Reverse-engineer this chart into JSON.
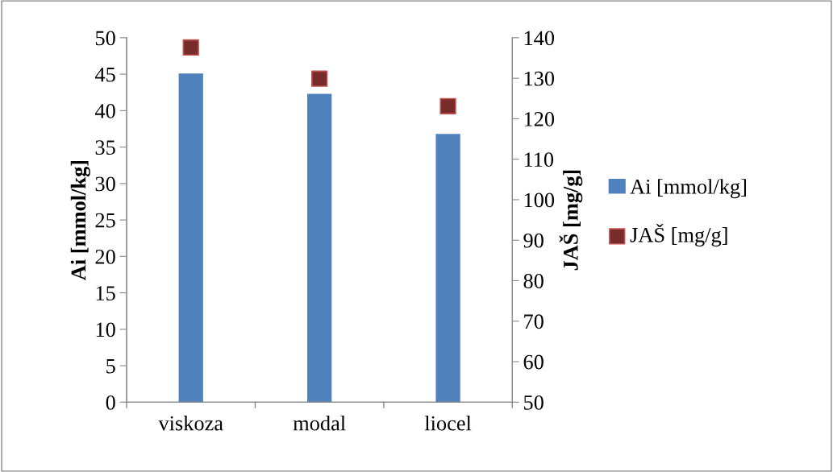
{
  "chart_data": {
    "type": "bar",
    "categories": [
      "viskoza",
      "modal",
      "liocel"
    ],
    "ylabel": "Ai [mmol/kg]",
    "y2label": "JAŠ [mg/g]",
    "series": [
      {
        "name": "Ai [mmol/kg]",
        "color": "#4f81bd",
        "values": [
          45.1,
          42.3,
          36.8
        ]
      },
      {
        "name": "JAŠ [mg/g]",
        "type": "scatter",
        "axis": "y2",
        "color": "#772c2a",
        "marker": "square",
        "values": [
          137.6,
          129.9,
          123.1
        ]
      }
    ],
    "ylim": [
      0,
      50
    ],
    "yticks": [
      0,
      5,
      10,
      15,
      20,
      25,
      30,
      35,
      40,
      45,
      50
    ],
    "y2lim": [
      50,
      140
    ],
    "y2ticks": [
      50,
      60,
      70,
      80,
      90,
      100,
      110,
      120,
      130,
      140
    ],
    "grid": false,
    "legend": "right"
  }
}
